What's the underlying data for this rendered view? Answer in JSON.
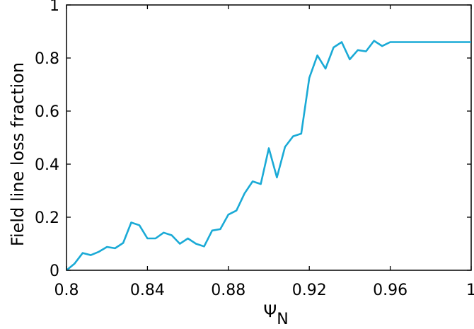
{
  "chart_data": {
    "type": "line",
    "xlabel_symbol": "Ψ",
    "xlabel_subscript": "N",
    "ylabel": "Field line loss fraction",
    "xlim": [
      0.8,
      1.0
    ],
    "ylim": [
      0,
      1
    ],
    "xticks": [
      0.8,
      0.84,
      0.88,
      0.92,
      0.96,
      1.0
    ],
    "xtick_labels": [
      "0.8",
      "0.84",
      "0.88",
      "0.92",
      "0.96",
      "1"
    ],
    "yticks": [
      0,
      0.2,
      0.4,
      0.6,
      0.8,
      1.0
    ],
    "ytick_labels": [
      "0",
      "0.2",
      "0.4",
      "0.6",
      "0.8",
      "1"
    ],
    "grid": false,
    "line_color": "#1aaad6",
    "series": [
      {
        "x": [
          0.8,
          0.804,
          0.808,
          0.812,
          0.816,
          0.82,
          0.824,
          0.828,
          0.832,
          0.836,
          0.84,
          0.844,
          0.848,
          0.852,
          0.856,
          0.86,
          0.864,
          0.868,
          0.872,
          0.876,
          0.88,
          0.884,
          0.888,
          0.892,
          0.896,
          0.9,
          0.904,
          0.908,
          0.912,
          0.916,
          0.92,
          0.924,
          0.928,
          0.932,
          0.936,
          0.94,
          0.944,
          0.948,
          0.952,
          0.956,
          0.96,
          0.964,
          0.968,
          0.972,
          0.976,
          0.98,
          0.984,
          0.988,
          0.992,
          0.996,
          1.0
        ],
        "y": [
          0.0,
          0.025,
          0.065,
          0.057,
          0.07,
          0.088,
          0.083,
          0.103,
          0.18,
          0.17,
          0.12,
          0.12,
          0.142,
          0.132,
          0.1,
          0.12,
          0.1,
          0.09,
          0.15,
          0.155,
          0.21,
          0.225,
          0.29,
          0.335,
          0.325,
          0.46,
          0.35,
          0.465,
          0.505,
          0.515,
          0.725,
          0.81,
          0.76,
          0.84,
          0.86,
          0.795,
          0.83,
          0.825,
          0.865,
          0.845,
          0.86,
          0.86,
          0.86,
          0.86,
          0.86,
          0.86,
          0.86,
          0.86,
          0.86,
          0.86,
          0.86
        ]
      }
    ]
  }
}
